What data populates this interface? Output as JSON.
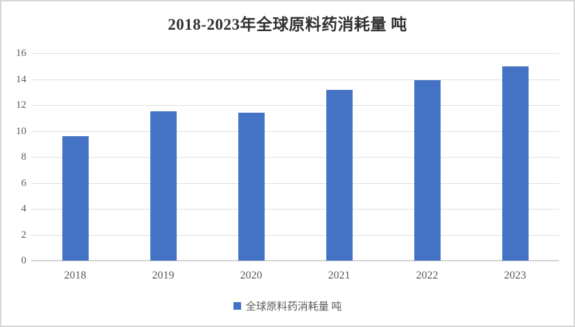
{
  "chart_data": {
    "type": "bar",
    "title": "2018-2023年全球原料药消耗量 吨",
    "categories": [
      "2018",
      "2019",
      "2020",
      "2021",
      "2022",
      "2023"
    ],
    "series": [
      {
        "name": "全球原料药消耗量 吨",
        "values": [
          9.6,
          11.5,
          11.4,
          13.2,
          13.9,
          15.0
        ]
      }
    ],
    "xlabel": "",
    "ylabel": "",
    "ylim": [
      0,
      16
    ],
    "ytick_step": 2,
    "grid": true,
    "legend_position": "bottom",
    "legend_label": "全球原料药消耗量 吨"
  },
  "colors": {
    "bar": "#4472c4",
    "gridline": "#dedede",
    "axis_line": "#d2d2d2",
    "tick_label": "#595959",
    "title": "#303030",
    "frame_border": "#d6d6d6"
  }
}
